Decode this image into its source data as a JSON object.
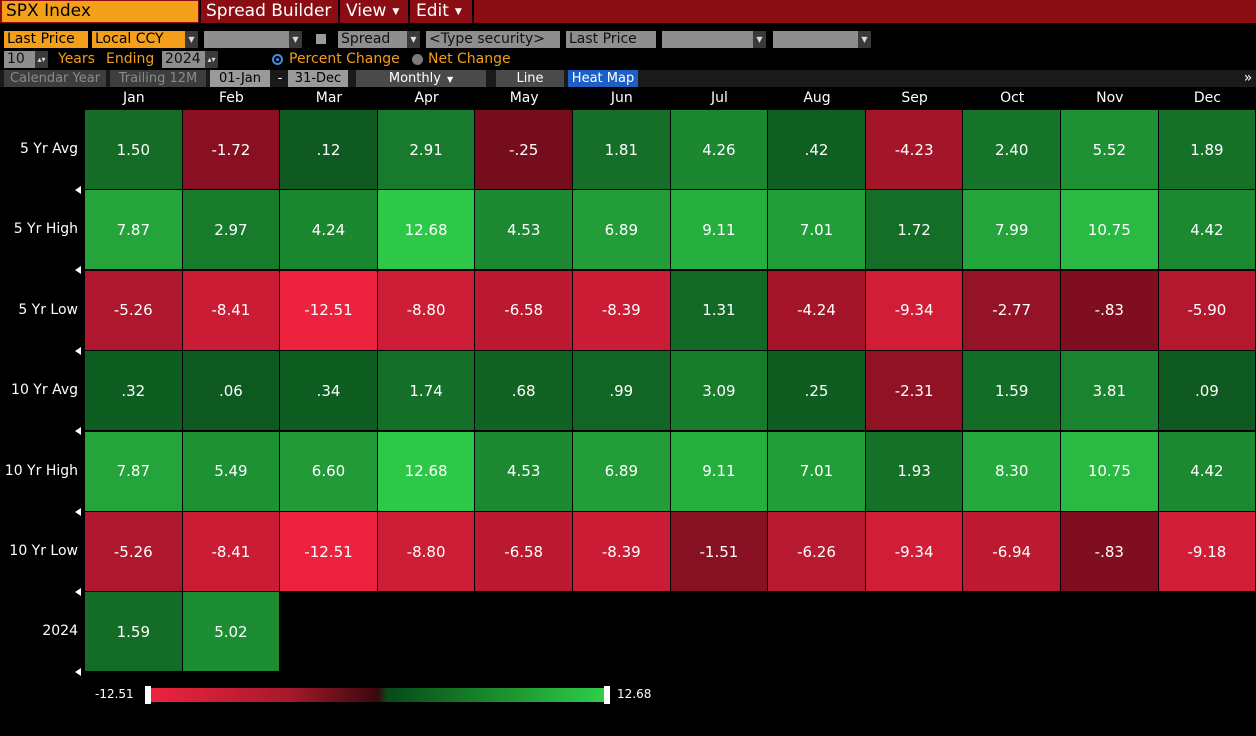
{
  "header": {
    "security": "SPX Index",
    "menus": [
      {
        "label": "Spread Builder",
        "caret": false
      },
      {
        "label": "View",
        "caret": true
      },
      {
        "label": "Edit",
        "caret": true
      }
    ]
  },
  "controls": {
    "field": "Last Price",
    "currency": "Local CCY",
    "spread_label": "Spread",
    "security_placeholder": "<Type security>",
    "field2": "Last Price",
    "years": "10",
    "years_label": "Years",
    "ending_label": "Ending",
    "end_year": "2024",
    "percent_change": "Percent Change",
    "net_change": "Net Change",
    "mode_selected": "Percent Change"
  },
  "toolbar": {
    "calendar_year": "Calendar Year",
    "trailing_12m": "Trailing 12M",
    "start_date": "01-Jan",
    "dash": "-",
    "end_date": "31-Dec",
    "period": "Monthly",
    "line": "Line",
    "heat_map": "Heat Map",
    "overflow": "»"
  },
  "heatmap": {
    "columns": [
      "Jan",
      "Feb",
      "Mar",
      "Apr",
      "May",
      "Jun",
      "Jul",
      "Aug",
      "Sep",
      "Oct",
      "Nov",
      "Dec"
    ],
    "rows": [
      {
        "label": "5 Yr Avg",
        "values": [
          "1.50",
          "-1.72",
          ".12",
          "2.91",
          "-.25",
          "1.81",
          "4.26",
          ".42",
          "-4.23",
          "2.40",
          "5.52",
          "1.89"
        ]
      },
      {
        "label": "5 Yr High",
        "values": [
          "7.87",
          "2.97",
          "4.24",
          "12.68",
          "4.53",
          "6.89",
          "9.11",
          "7.01",
          "1.72",
          "7.99",
          "10.75",
          "4.42"
        ]
      },
      {
        "label": "5 Yr Low",
        "values": [
          "-5.26",
          "-8.41",
          "-12.51",
          "-8.80",
          "-6.58",
          "-8.39",
          "1.31",
          "-4.24",
          "-9.34",
          "-2.77",
          "-.83",
          "-5.90"
        ]
      },
      {
        "label": "10 Yr Avg",
        "values": [
          ".32",
          ".06",
          ".34",
          "1.74",
          ".68",
          ".99",
          "3.09",
          ".25",
          "-2.31",
          "1.59",
          "3.81",
          ".09"
        ]
      },
      {
        "label": "10 Yr High",
        "values": [
          "7.87",
          "5.49",
          "6.60",
          "12.68",
          "4.53",
          "6.89",
          "9.11",
          "7.01",
          "1.93",
          "8.30",
          "10.75",
          "4.42"
        ]
      },
      {
        "label": "10 Yr Low",
        "values": [
          "-5.26",
          "-8.41",
          "-12.51",
          "-8.80",
          "-6.58",
          "-8.39",
          "-1.51",
          "-6.26",
          "-9.34",
          "-6.94",
          "-.83",
          "-9.18"
        ]
      },
      {
        "label": "2024",
        "values": [
          "1.59",
          "5.02"
        ]
      }
    ]
  },
  "legend": {
    "min": "-12.51",
    "max": "12.68"
  },
  "colors": {
    "brand_bar": "#8b0d14",
    "orange": "#f39f1a",
    "selected_tab": "#1d5fc4"
  }
}
